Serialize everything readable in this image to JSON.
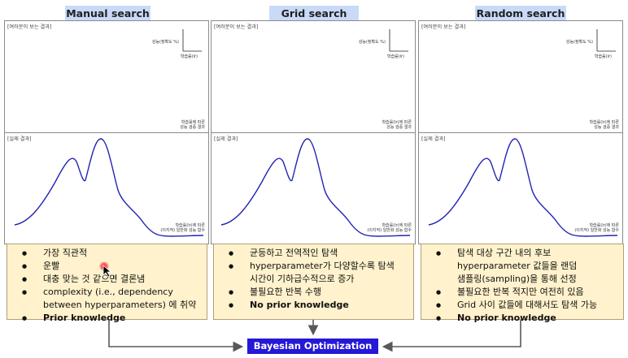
{
  "columns": [
    {
      "title": "Manual search",
      "ideal_label": "[여러분이 보는 결과]",
      "ideal_y_axis": "성능(정확도 %)",
      "ideal_x_axis": "학습률(lr)",
      "ideal_note": [
        "학습률에 따른",
        "성능 검증 결과"
      ],
      "actual_label": "[실제 결과]",
      "actual_note": [
        "학습률(lr)에 따른",
        "(이지적) 일반화 성능 함수"
      ],
      "bullets": [
        {
          "text": "가장 직관적",
          "bold": false
        },
        {
          "text": "운빨",
          "bold": false
        },
        {
          "text": "대충 맞는 것 같으면 결론냄",
          "bold": false
        },
        {
          "text": "complexity (i.e., dependency",
          "bold": false,
          "continuation": "between hyperparameters) 에 취약"
        },
        {
          "text": "Prior knowledge",
          "bold": true
        }
      ]
    },
    {
      "title": "Grid search",
      "ideal_label": "[여러분이 보는 결과]",
      "ideal_y_axis": "성능(정확도 %)",
      "ideal_x_axis": "학습률(lr)",
      "ideal_note": [
        "학습률(lr)에 따른",
        "성능 검증 결과"
      ],
      "actual_label": "[실제 결과]",
      "actual_note": [
        "학습률(lr)에 따른",
        "(이지적) 일반화 성능 함수"
      ],
      "bullets": [
        {
          "text": "균등하고 전역적인 탐색",
          "bold": false
        },
        {
          "text": "hyperparameter가 다양할수록 탐색",
          "bold": false,
          "continuation": "시간이 기하급수적으로 증가"
        },
        {
          "text": "불필요한 반복 수행",
          "bold": false
        },
        {
          "text": "No prior knowledge",
          "bold": true
        }
      ]
    },
    {
      "title": "Random search",
      "ideal_label": "[여러분이 보는 결과]",
      "ideal_y_axis": "성능(정확도 %)",
      "ideal_x_axis": "학습률(lr)",
      "ideal_note": [
        "학습률(lr)에 따른",
        "성능 검증 결과"
      ],
      "actual_label": "[실제 결과]",
      "actual_note": [
        "학습률(lr)에 따른",
        "(이지적) 일반화 성능 함수"
      ],
      "bullets": [
        {
          "text": "탐색 대상 구간 내의 후보",
          "bold": false,
          "continuation": "hyperparameter 값들을 랜덤",
          "continuation2": "샘플링(sampling)을 통해 선정"
        },
        {
          "text": "불필요한 반복 적지만 여전히 있음",
          "bold": false
        },
        {
          "text": "Grid 사이 값들에 대해서도 탐색 가능",
          "bold": false
        },
        {
          "text": "No prior knowledge",
          "bold": true
        }
      ]
    }
  ],
  "target": "Bayesian Optimization",
  "colors": {
    "title_bg": "#c9daf8",
    "bullet_bg": "#fff2cc",
    "curve": "#2323b0",
    "target_bg": "#2518d6",
    "arrow": "#595959"
  }
}
